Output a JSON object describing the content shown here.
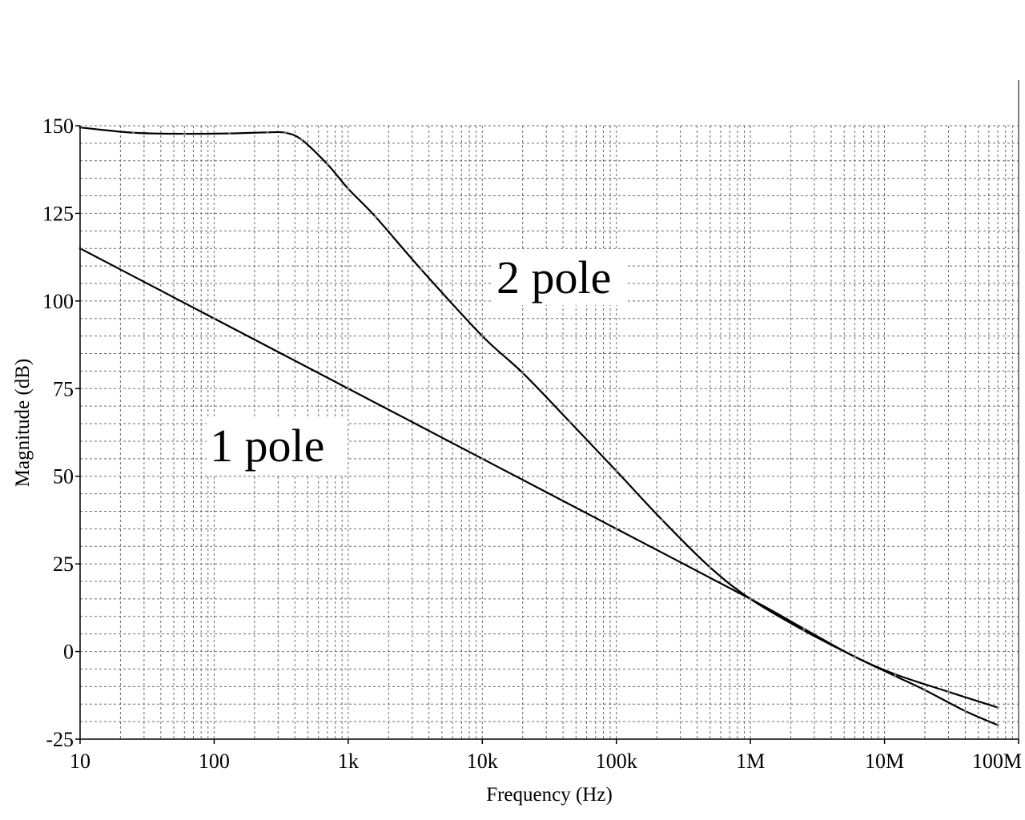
{
  "chart_data": {
    "type": "line",
    "xlabel": "Frequency (Hz)",
    "ylabel": "Magnitude (dB)",
    "x_scale": "log",
    "xlim": [
      10,
      100000000
    ],
    "ylim": [
      -25,
      150
    ],
    "x_ticks": [
      {
        "value": 10,
        "label": "10"
      },
      {
        "value": 100,
        "label": "100"
      },
      {
        "value": 1000,
        "label": "1k"
      },
      {
        "value": 10000,
        "label": "10k"
      },
      {
        "value": 100000,
        "label": "100k"
      },
      {
        "value": 1000000,
        "label": "1M"
      },
      {
        "value": 10000000,
        "label": "10M"
      },
      {
        "value": 100000000,
        "label": "100M"
      }
    ],
    "y_ticks": [
      {
        "value": 150,
        "label": "150"
      },
      {
        "value": 125,
        "label": "125"
      },
      {
        "value": 100,
        "label": "100"
      },
      {
        "value": 75,
        "label": "75"
      },
      {
        "value": 50,
        "label": "50"
      },
      {
        "value": 25,
        "label": "25"
      },
      {
        "value": 0,
        "label": "0"
      },
      {
        "value": -25,
        "label": "-25"
      }
    ],
    "grid": true,
    "series": [
      {
        "name": "1 pole",
        "x": [
          10,
          100,
          1000,
          10000,
          100000,
          1000000,
          2500000,
          6000000,
          12000000,
          30000000,
          70000000
        ],
        "y": [
          115,
          95,
          75,
          55,
          35,
          15,
          6.5,
          -1.5,
          -6.5,
          -11.5,
          -16
        ]
      },
      {
        "name": "2 pole",
        "x": [
          10,
          25,
          60,
          130,
          250,
          340,
          450,
          700,
          1000,
          1600,
          3500,
          10000,
          20000,
          45000,
          100000,
          220000,
          500000,
          1000000,
          2500000,
          6000000,
          12000000,
          20000000,
          40000000,
          70000000
        ],
        "y": [
          149.5,
          148,
          147.7,
          147.8,
          148.1,
          148,
          146,
          139,
          132,
          124,
          109,
          90,
          79.5,
          65.5,
          51.5,
          37.5,
          24,
          15,
          6,
          -1.5,
          -7,
          -11,
          -17,
          -21
        ]
      }
    ],
    "annotations": [
      "2 pole",
      "1 pole"
    ]
  }
}
